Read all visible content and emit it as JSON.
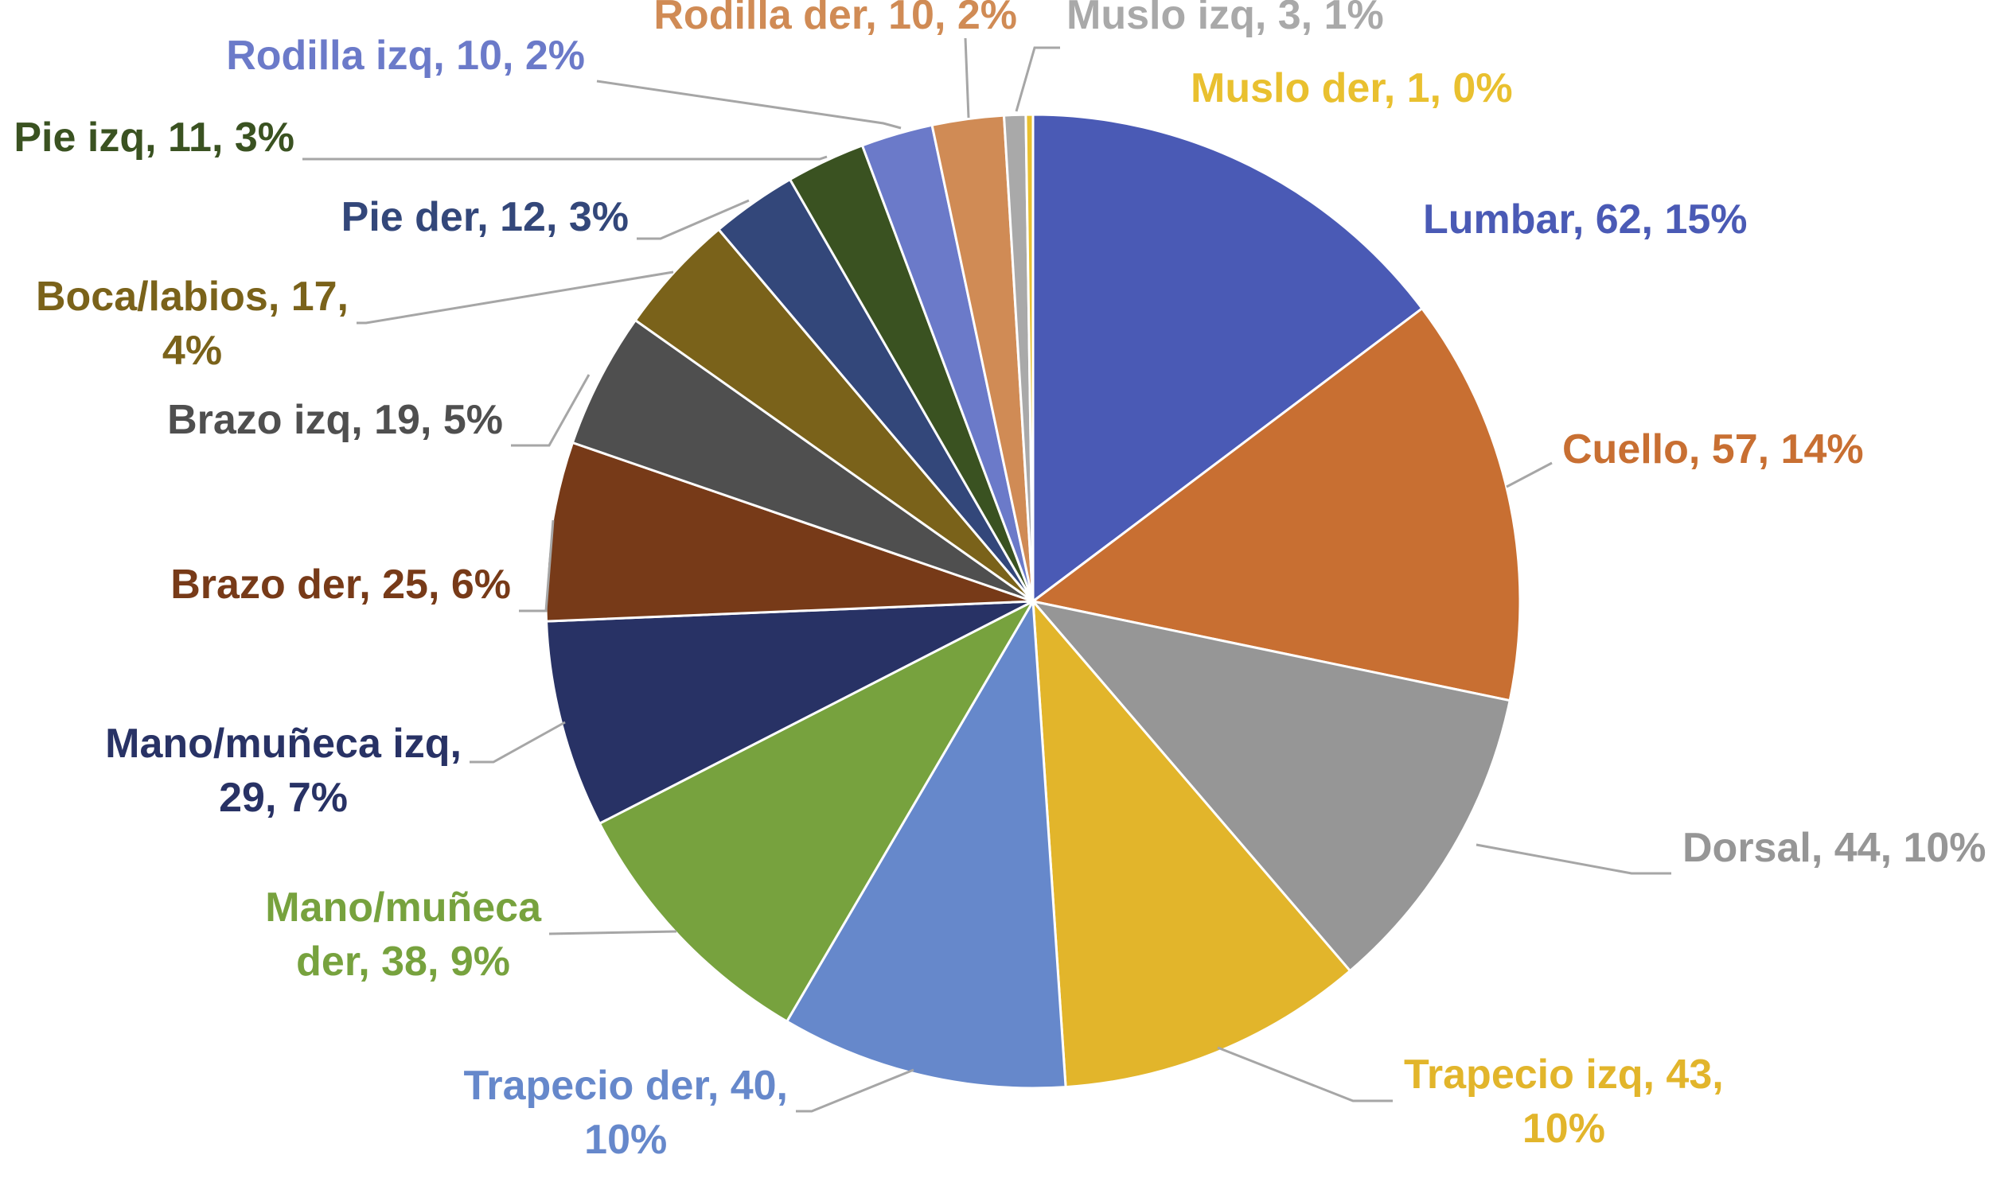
{
  "chart_data": {
    "type": "pie",
    "title": "",
    "legend": "none",
    "start_angle_deg": 0,
    "direction": "clockwise",
    "slices": [
      {
        "name": "Lumbar",
        "value": 62,
        "percent": "15%",
        "label_lines": [
          "Lumbar, 62, 15%"
        ],
        "color": "#4a5ab5",
        "label_color": "#4a5ab5"
      },
      {
        "name": "Cuello",
        "value": 57,
        "percent": "14%",
        "label_lines": [
          "Cuello, 57, 14%"
        ],
        "color": "#c86f32",
        "label_color": "#c86f32"
      },
      {
        "name": "Dorsal",
        "value": 44,
        "percent": "10%",
        "label_lines": [
          "Dorsal, 44, 10%"
        ],
        "color": "#969696",
        "label_color": "#969696"
      },
      {
        "name": "Trapecio izq",
        "value": 43,
        "percent": "10%",
        "label_lines": [
          "Trapecio izq, 43,",
          "10%"
        ],
        "color": "#e2b52b",
        "label_color": "#e2b52b"
      },
      {
        "name": "Trapecio der",
        "value": 40,
        "percent": "10%",
        "label_lines": [
          "Trapecio der, 40,",
          "10%"
        ],
        "color": "#6688cb",
        "label_color": "#6688cb"
      },
      {
        "name": "Mano/muñeca der",
        "value": 38,
        "percent": "9%",
        "label_lines": [
          "Mano/muñeca",
          "der, 38, 9%"
        ],
        "color": "#77a23e",
        "label_color": "#77a23e"
      },
      {
        "name": "Mano/muñeca izq",
        "value": 29,
        "percent": "7%",
        "label_lines": [
          "Mano/muñeca izq,",
          "29, 7%"
        ],
        "color": "#283265",
        "label_color": "#283265"
      },
      {
        "name": "Brazo der",
        "value": 25,
        "percent": "6%",
        "label_lines": [
          "Brazo der, 25, 6%"
        ],
        "color": "#773a18",
        "label_color": "#773a18"
      },
      {
        "name": "Brazo izq",
        "value": 19,
        "percent": "5%",
        "label_lines": [
          "Brazo izq, 19, 5%"
        ],
        "color": "#4f4f4f",
        "label_color": "#4f4f4f"
      },
      {
        "name": "Boca/labios",
        "value": 17,
        "percent": "4%",
        "label_lines": [
          "Boca/labios, 17,",
          "4%"
        ],
        "color": "#7a621a",
        "label_color": "#7a621a"
      },
      {
        "name": "Pie der",
        "value": 12,
        "percent": "3%",
        "label_lines": [
          "Pie der, 12, 3%"
        ],
        "color": "#33477a",
        "label_color": "#33477a"
      },
      {
        "name": "Pie izq",
        "value": 11,
        "percent": "3%",
        "label_lines": [
          "Pie izq, 11, 3%"
        ],
        "color": "#3a5221",
        "label_color": "#3a5221"
      },
      {
        "name": "Rodilla izq",
        "value": 10,
        "percent": "2%",
        "label_lines": [
          "Rodilla izq, 10, 2%"
        ],
        "color": "#6b7ac9",
        "label_color": "#6b7ac9"
      },
      {
        "name": "Rodilla der",
        "value": 10,
        "percent": "2%",
        "label_lines": [
          "Rodilla der, 10, 2%"
        ],
        "color": "#d08b55",
        "label_color": "#d08b55"
      },
      {
        "name": "Muslo izq",
        "value": 3,
        "percent": "1%",
        "label_lines": [
          "Muslo izq, 3, 1%"
        ],
        "color": "#a9a9a9",
        "label_color": "#a9a9a9"
      },
      {
        "name": "Muslo der",
        "value": 1,
        "percent": "0%",
        "label_lines": [
          "Muslo der, 1, 0%"
        ],
        "color": "#e9c02f",
        "label_color": "#e9c02f"
      }
    ],
    "leader_line_color": "#a6a6a6"
  }
}
